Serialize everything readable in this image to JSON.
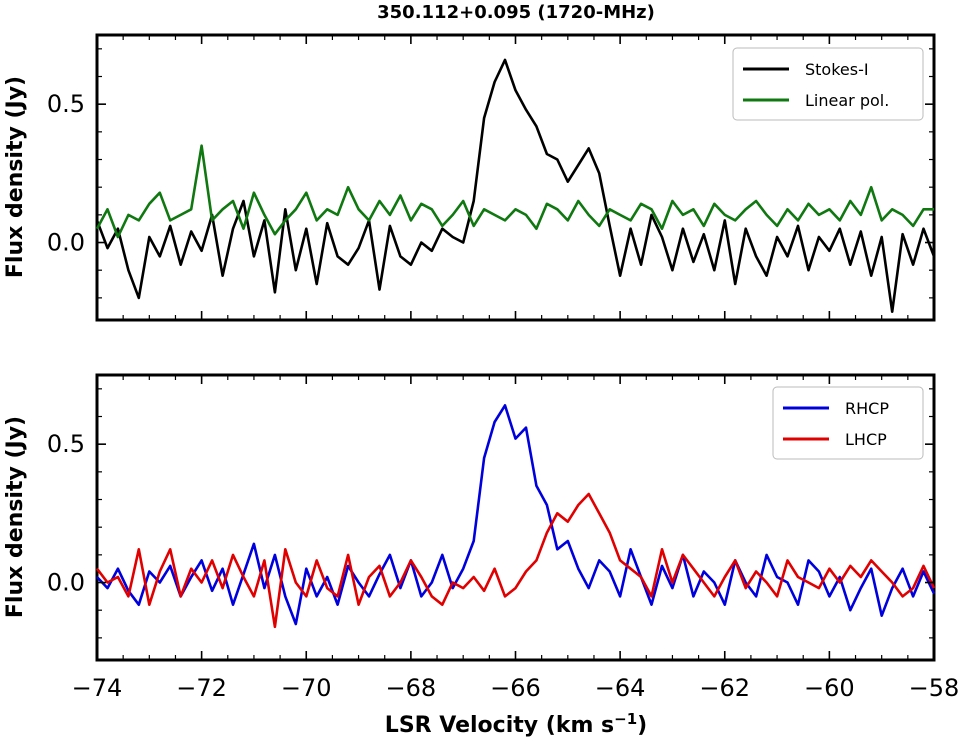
{
  "figure": {
    "title": "350.112+0.095 (1720-MHz)",
    "xlabel": "LSR Velocity (km s",
    "xlabel_sup": "−1",
    "xlabel_close": ")"
  },
  "chart_data": [
    {
      "type": "line",
      "title": "350.112+0.095 (1720-MHz)",
      "xlabel": "",
      "ylabel": "Flux density (Jy)",
      "xlim": [
        -74,
        -58
      ],
      "ylim": [
        -0.28,
        0.75
      ],
      "xticks": [
        -74,
        -72,
        -70,
        -68,
        -66,
        -64,
        -62,
        -60,
        -58
      ],
      "xtick_labels": [
        "−74",
        "−72",
        "−70",
        "−68",
        "−66",
        "−64",
        "−62",
        "−60",
        "−58"
      ],
      "yticks": [
        0.0,
        0.5
      ],
      "ytick_labels": [
        "0.0",
        "0.5"
      ],
      "legend": "top-right",
      "grid": false,
      "series": [
        {
          "name": "Stokes-I",
          "color": "#000000",
          "x": [
            -74,
            -73.8,
            -73.6,
            -73.4,
            -73.2,
            -73,
            -72.8,
            -72.6,
            -72.4,
            -72.2,
            -72,
            -71.8,
            -71.6,
            -71.4,
            -71.2,
            -71,
            -70.8,
            -70.6,
            -70.4,
            -70.2,
            -70,
            -69.8,
            -69.6,
            -69.4,
            -69.2,
            -69,
            -68.8,
            -68.6,
            -68.4,
            -68.2,
            -68,
            -67.8,
            -67.6,
            -67.4,
            -67.2,
            -67,
            -66.8,
            -66.6,
            -66.4,
            -66.2,
            -66,
            -65.8,
            -65.6,
            -65.4,
            -65.2,
            -65,
            -64.8,
            -64.6,
            -64.4,
            -64.2,
            -64,
            -63.8,
            -63.6,
            -63.4,
            -63.2,
            -63,
            -62.8,
            -62.6,
            -62.4,
            -62.2,
            -62,
            -61.8,
            -61.6,
            -61.4,
            -61.2,
            -61,
            -60.8,
            -60.6,
            -60.4,
            -60.2,
            -60,
            -59.8,
            -59.6,
            -59.4,
            -59.2,
            -59,
            -58.8,
            -58.6,
            -58.4,
            -58.2,
            -58
          ],
          "y": [
            0.08,
            -0.02,
            0.05,
            -0.1,
            -0.2,
            0.02,
            -0.05,
            0.06,
            -0.08,
            0.04,
            -0.03,
            0.1,
            -0.12,
            0.05,
            0.15,
            -0.05,
            0.08,
            -0.18,
            0.12,
            -0.1,
            0.05,
            -0.15,
            0.07,
            -0.05,
            -0.08,
            -0.02,
            0.08,
            -0.17,
            0.06,
            -0.05,
            -0.08,
            0.0,
            -0.03,
            0.05,
            0.02,
            0.0,
            0.15,
            0.45,
            0.58,
            0.66,
            0.55,
            0.48,
            0.42,
            0.32,
            0.3,
            0.22,
            0.28,
            0.34,
            0.25,
            0.06,
            -0.12,
            0.05,
            -0.08,
            0.1,
            0.02,
            -0.1,
            0.05,
            -0.07,
            0.03,
            -0.1,
            0.08,
            -0.15,
            0.05,
            -0.05,
            -0.12,
            0.02,
            -0.05,
            0.06,
            -0.1,
            0.02,
            -0.03,
            0.05,
            -0.08,
            0.04,
            -0.12,
            0.02,
            -0.25,
            0.03,
            -0.08,
            0.05,
            -0.05
          ]
        },
        {
          "name": "Linear pol.",
          "color": "#107810",
          "x": [
            -74,
            -73.8,
            -73.6,
            -73.4,
            -73.2,
            -73,
            -72.8,
            -72.6,
            -72.4,
            -72.2,
            -72,
            -71.8,
            -71.6,
            -71.4,
            -71.2,
            -71,
            -70.8,
            -70.6,
            -70.4,
            -70.2,
            -70,
            -69.8,
            -69.6,
            -69.4,
            -69.2,
            -69,
            -68.8,
            -68.6,
            -68.4,
            -68.2,
            -68,
            -67.8,
            -67.6,
            -67.4,
            -67.2,
            -67,
            -66.8,
            -66.6,
            -66.4,
            -66.2,
            -66,
            -65.8,
            -65.6,
            -65.4,
            -65.2,
            -65,
            -64.8,
            -64.6,
            -64.4,
            -64.2,
            -64,
            -63.8,
            -63.6,
            -63.4,
            -63.2,
            -63,
            -62.8,
            -62.6,
            -62.4,
            -62.2,
            -62,
            -61.8,
            -61.6,
            -61.4,
            -61.2,
            -61,
            -60.8,
            -60.6,
            -60.4,
            -60.2,
            -60,
            -59.8,
            -59.6,
            -59.4,
            -59.2,
            -59,
            -58.8,
            -58.6,
            -58.4,
            -58.2,
            -58
          ],
          "y": [
            0.05,
            0.12,
            0.02,
            0.1,
            0.08,
            0.14,
            0.18,
            0.08,
            0.1,
            0.12,
            0.35,
            0.08,
            0.12,
            0.15,
            0.05,
            0.18,
            0.1,
            0.03,
            0.08,
            0.12,
            0.18,
            0.08,
            0.12,
            0.1,
            0.2,
            0.12,
            0.08,
            0.15,
            0.1,
            0.17,
            0.08,
            0.14,
            0.12,
            0.06,
            0.1,
            0.15,
            0.06,
            0.12,
            0.1,
            0.08,
            0.12,
            0.1,
            0.05,
            0.14,
            0.12,
            0.08,
            0.15,
            0.1,
            0.06,
            0.12,
            0.1,
            0.08,
            0.14,
            0.12,
            0.05,
            0.15,
            0.1,
            0.12,
            0.06,
            0.14,
            0.1,
            0.08,
            0.12,
            0.15,
            0.1,
            0.06,
            0.12,
            0.08,
            0.14,
            0.1,
            0.12,
            0.08,
            0.15,
            0.1,
            0.2,
            0.08,
            0.12,
            0.1,
            0.06,
            0.12,
            0.12
          ]
        }
      ]
    },
    {
      "type": "line",
      "title": "",
      "xlabel": "LSR Velocity (km s−1)",
      "ylabel": "Flux density (Jy)",
      "xlim": [
        -74,
        -58
      ],
      "ylim": [
        -0.28,
        0.75
      ],
      "xticks": [
        -74,
        -72,
        -70,
        -68,
        -66,
        -64,
        -62,
        -60,
        -58
      ],
      "xtick_labels": [
        "−74",
        "−72",
        "−70",
        "−68",
        "−66",
        "−64",
        "−62",
        "−60",
        "−58"
      ],
      "yticks": [
        0.0,
        0.5
      ],
      "ytick_labels": [
        "0.0",
        "0.5"
      ],
      "legend": "top-right",
      "grid": false,
      "series": [
        {
          "name": "RHCP",
          "color": "#0000dd",
          "x": [
            -74,
            -73.8,
            -73.6,
            -73.4,
            -73.2,
            -73,
            -72.8,
            -72.6,
            -72.4,
            -72.2,
            -72,
            -71.8,
            -71.6,
            -71.4,
            -71.2,
            -71,
            -70.8,
            -70.6,
            -70.4,
            -70.2,
            -70,
            -69.8,
            -69.6,
            -69.4,
            -69.2,
            -69,
            -68.8,
            -68.6,
            -68.4,
            -68.2,
            -68,
            -67.8,
            -67.6,
            -67.4,
            -67.2,
            -67,
            -66.8,
            -66.6,
            -66.4,
            -66.2,
            -66,
            -65.8,
            -65.6,
            -65.4,
            -65.2,
            -65,
            -64.8,
            -64.6,
            -64.4,
            -64.2,
            -64,
            -63.8,
            -63.6,
            -63.4,
            -63.2,
            -63,
            -62.8,
            -62.6,
            -62.4,
            -62.2,
            -62,
            -61.8,
            -61.6,
            -61.4,
            -61.2,
            -61,
            -60.8,
            -60.6,
            -60.4,
            -60.2,
            -60,
            -59.8,
            -59.6,
            -59.4,
            -59.2,
            -59,
            -58.8,
            -58.6,
            -58.4,
            -58.2,
            -58
          ],
          "y": [
            0.02,
            -0.02,
            0.05,
            -0.03,
            -0.08,
            0.04,
            0.0,
            0.06,
            -0.05,
            0.02,
            0.08,
            -0.03,
            0.05,
            -0.08,
            0.03,
            0.14,
            -0.02,
            0.1,
            -0.05,
            -0.15,
            0.05,
            -0.05,
            0.02,
            -0.08,
            0.06,
            0.0,
            -0.05,
            0.03,
            0.1,
            -0.02,
            0.08,
            -0.05,
            0.0,
            0.1,
            -0.02,
            0.05,
            0.15,
            0.45,
            0.58,
            0.64,
            0.52,
            0.56,
            0.35,
            0.28,
            0.12,
            0.15,
            0.05,
            -0.02,
            0.08,
            0.04,
            -0.05,
            0.12,
            0.02,
            -0.08,
            0.06,
            -0.02,
            0.1,
            -0.05,
            0.04,
            0.0,
            -0.08,
            0.08,
            0.0,
            -0.05,
            0.1,
            0.02,
            0.0,
            -0.08,
            0.08,
            0.04,
            -0.05,
            0.02,
            -0.1,
            -0.02,
            0.05,
            -0.12,
            -0.02,
            0.05,
            -0.05,
            0.04,
            -0.04
          ]
        },
        {
          "name": "LHCP",
          "color": "#e00000",
          "x": [
            -74,
            -73.8,
            -73.6,
            -73.4,
            -73.2,
            -73,
            -72.8,
            -72.6,
            -72.4,
            -72.2,
            -72,
            -71.8,
            -71.6,
            -71.4,
            -71.2,
            -71,
            -70.8,
            -70.6,
            -70.4,
            -70.2,
            -70,
            -69.8,
            -69.6,
            -69.4,
            -69.2,
            -69,
            -68.8,
            -68.6,
            -68.4,
            -68.2,
            -68,
            -67.8,
            -67.6,
            -67.4,
            -67.2,
            -67,
            -66.8,
            -66.6,
            -66.4,
            -66.2,
            -66,
            -65.8,
            -65.6,
            -65.4,
            -65.2,
            -65,
            -64.8,
            -64.6,
            -64.4,
            -64.2,
            -64,
            -63.8,
            -63.6,
            -63.4,
            -63.2,
            -63,
            -62.8,
            -62.6,
            -62.4,
            -62.2,
            -62,
            -61.8,
            -61.6,
            -61.4,
            -61.2,
            -61,
            -60.8,
            -60.6,
            -60.4,
            -60.2,
            -60,
            -59.8,
            -59.6,
            -59.4,
            -59.2,
            -59,
            -58.8,
            -58.6,
            -58.4,
            -58.2,
            -58
          ],
          "y": [
            0.05,
            0.0,
            0.02,
            -0.05,
            0.12,
            -0.08,
            0.04,
            0.12,
            -0.05,
            0.05,
            0.0,
            0.08,
            -0.02,
            0.1,
            0.02,
            -0.05,
            0.08,
            -0.16,
            0.12,
            0.0,
            -0.05,
            0.08,
            -0.02,
            -0.05,
            0.1,
            -0.08,
            0.02,
            0.06,
            -0.05,
            0.0,
            0.08,
            0.02,
            -0.05,
            -0.08,
            0.0,
            -0.02,
            0.02,
            -0.03,
            0.05,
            -0.05,
            -0.02,
            0.04,
            0.08,
            0.18,
            0.25,
            0.22,
            0.28,
            0.32,
            0.25,
            0.18,
            0.08,
            0.05,
            0.02,
            -0.05,
            0.12,
            0.0,
            0.1,
            0.05,
            0.0,
            -0.05,
            0.02,
            0.08,
            -0.02,
            0.04,
            0.0,
            -0.05,
            0.08,
            0.02,
            0.0,
            -0.02,
            0.05,
            0.0,
            0.06,
            0.02,
            0.08,
            0.04,
            0.0,
            -0.05,
            -0.02,
            0.06,
            -0.02
          ]
        }
      ]
    }
  ]
}
